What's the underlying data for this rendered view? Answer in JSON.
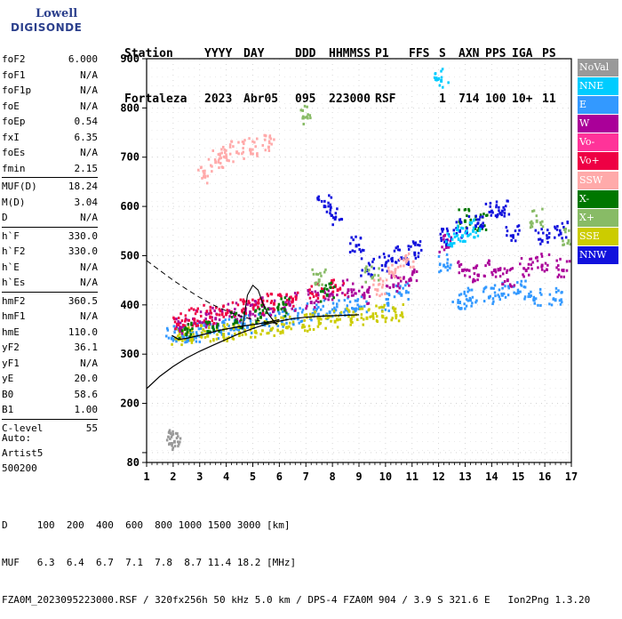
{
  "logo": {
    "line1": "Lowell",
    "line2": "DIGISONDE"
  },
  "header": {
    "labels": [
      "Station",
      "YYYY",
      "DAY",
      "DDD",
      "HHMMSS",
      "P1",
      "FFS",
      "S",
      "AXN",
      "PPS",
      "IGA",
      "PS"
    ],
    "values": [
      "Fortaleza",
      "2023",
      "Abr05",
      "095",
      "223000",
      "RSF",
      "1",
      "714",
      "100",
      "10+",
      "11"
    ]
  },
  "params": {
    "groups": [
      [
        [
          "foF2",
          "6.000"
        ],
        [
          "foF1",
          "N/A"
        ],
        [
          "foF1p",
          "N/A"
        ],
        [
          "foE",
          "N/A"
        ],
        [
          "foEp",
          "0.54"
        ],
        [
          "fxI",
          "6.35"
        ],
        [
          "foEs",
          "N/A"
        ],
        [
          "fmin",
          "2.15"
        ]
      ],
      [
        [
          "MUF(D)",
          "18.24"
        ],
        [
          "M(D)",
          "3.04"
        ],
        [
          "D",
          "N/A"
        ]
      ],
      [
        [
          "h`F",
          "330.0"
        ],
        [
          "h`F2",
          "330.0"
        ],
        [
          "h`E",
          "N/A"
        ],
        [
          "h`Es",
          "N/A"
        ]
      ],
      [
        [
          "hmF2",
          "360.5"
        ],
        [
          "hmF1",
          "N/A"
        ],
        [
          "hmE",
          "110.0"
        ],
        [
          "yF2",
          "36.1"
        ],
        [
          "yF1",
          "N/A"
        ],
        [
          "yE",
          "20.0"
        ],
        [
          "B0",
          "58.6"
        ],
        [
          "B1",
          "1.00"
        ]
      ],
      [
        [
          "C-level",
          "55"
        ]
      ]
    ]
  },
  "auto": [
    "Auto:",
    "Artist5",
    "500200"
  ],
  "footer": {
    "d_row": "D     100  200  400  600  800 1000 1500 3000 [km]",
    "muf_row": "MUF   6.3  6.4  6.7  7.1  7.8  8.7 11.4 18.2 [MHz]",
    "file_row": "FZA0M_2023095223000.RSF / 320fx256h 50 kHz 5.0 km / DPS-4 FZA0M 904 / 3.9 S 321.6 E   Ion2Png 1.3.20"
  },
  "legend": [
    {
      "label": "NoVal",
      "color": "#999999"
    },
    {
      "label": "NNE",
      "color": "#00ccff"
    },
    {
      "label": "E",
      "color": "#3399ff"
    },
    {
      "label": "W",
      "color": "#aa0099"
    },
    {
      "label": "Vo-",
      "color": "#ff3399"
    },
    {
      "label": "Vo+",
      "color": "#ee0044"
    },
    {
      "label": "SSW",
      "color": "#ffaaaa"
    },
    {
      "label": "X-",
      "color": "#007700"
    },
    {
      "label": "X+",
      "color": "#88bb66"
    },
    {
      "label": "SSE",
      "color": "#cccc00"
    },
    {
      "label": "NNW",
      "color": "#1111dd"
    }
  ],
  "chart_data": {
    "type": "scatter",
    "title": "",
    "xlabel": "",
    "ylabel": "",
    "xlim": [
      1,
      17
    ],
    "ylim": [
      80,
      900
    ],
    "x_ticks": [
      1,
      2,
      3,
      4,
      5,
      6,
      7,
      8,
      9,
      10,
      11,
      12,
      13,
      14,
      15,
      16,
      17
    ],
    "y_ticks": [
      80,
      100,
      200,
      300,
      400,
      500,
      600,
      700,
      800,
      900
    ],
    "y_tick_labels": [
      "80",
      "",
      "200",
      "300",
      "400",
      "500",
      "600",
      "700",
      "800",
      "900"
    ],
    "grid": true,
    "series": [
      {
        "color": "#3399ff",
        "x": [
          1.95,
          2.4,
          2.9,
          3.3,
          3.8,
          4.3,
          4.8,
          5.4,
          6.1,
          6.7,
          7.3,
          7.9,
          8.5,
          9.1,
          10.1,
          10.6,
          12.2,
          12.8,
          13.2,
          13.9,
          14.4,
          15.0,
          15.6,
          16.4
        ],
        "y": [
          332,
          334,
          338,
          341,
          345,
          350,
          355,
          360,
          366,
          372,
          378,
          385,
          390,
          395,
          400,
          420,
          480,
          405,
          410,
          415,
          420,
          425,
          410,
          410
        ]
      },
      {
        "color": "#cccc00",
        "x": [
          2.1,
          2.7,
          3.3,
          3.9,
          4.5,
          5.1,
          5.7,
          6.3,
          6.9,
          7.5,
          8.1,
          8.7,
          9.3,
          9.9,
          10.4
        ],
        "y": [
          332,
          335,
          337,
          340,
          343,
          346,
          350,
          354,
          358,
          362,
          366,
          370,
          373,
          376,
          378
        ]
      },
      {
        "color": "#aa0099",
        "x": [
          2.3,
          3.0,
          3.6,
          4.3,
          4.9,
          5.6,
          6.4,
          7.2,
          7.9,
          8.6,
          9.2,
          10.3,
          10.9,
          12.3,
          12.9,
          13.5,
          14.1,
          14.6,
          15.3,
          15.9,
          16.7
        ],
        "y": [
          352,
          365,
          372,
          380,
          385,
          392,
          400,
          405,
          420,
          430,
          415,
          440,
          450,
          520,
          470,
          460,
          470,
          450,
          470,
          480,
          470
        ]
      },
      {
        "color": "#ee0044",
        "x": [
          2.2,
          2.8,
          3.4,
          4.0,
          4.6,
          5.2,
          5.8,
          6.5,
          7.4,
          8.2
        ],
        "y": [
          360,
          370,
          375,
          382,
          388,
          395,
          402,
          410,
          420,
          430
        ]
      },
      {
        "color": "#007700",
        "x": [
          2.5,
          3.5,
          4.4,
          5.3,
          6.2,
          7.8,
          13.0,
          13.6
        ],
        "y": [
          340,
          355,
          365,
          375,
          390,
          420,
          570,
          560
        ]
      },
      {
        "color": "#1111dd",
        "x": [
          7.7,
          8.1,
          8.9,
          9.3,
          10.0,
          10.6,
          11.1,
          12.3,
          12.8,
          13.4,
          14.0,
          14.4,
          14.8,
          15.9,
          16.6
        ],
        "y": [
          600,
          575,
          520,
          470,
          480,
          495,
          505,
          530,
          550,
          560,
          590,
          590,
          540,
          530,
          545
        ]
      },
      {
        "color": "#ffaaaa",
        "x": [
          3.2,
          3.6,
          4.0,
          4.4,
          4.9,
          5.6,
          9.7,
          10.3,
          10.8
        ],
        "y": [
          660,
          690,
          700,
          710,
          715,
          720,
          430,
          460,
          490
        ]
      },
      {
        "color": "#00ccff",
        "x": [
          12.1,
          12.5,
          12.9,
          13.3
        ],
        "y": [
          855,
          520,
          540,
          550
        ]
      },
      {
        "color": "#88bb66",
        "x": [
          6.9,
          7.5,
          9.5,
          15.7,
          16.9
        ],
        "y": [
          780,
          450,
          455,
          570,
          530
        ]
      },
      {
        "color": "#999999",
        "x": [
          1.95,
          2.05
        ],
        "y": [
          118,
          122
        ]
      }
    ],
    "trace_x": [
      1.95,
      2.2,
      2.5,
      2.9,
      3.3,
      3.7,
      4.1,
      4.5,
      5.0,
      5.5,
      6.0
    ],
    "trace_y": [
      338,
      330,
      332,
      337,
      342,
      348,
      352,
      356,
      360,
      364,
      370
    ],
    "cusp_x": [
      4.6,
      4.8,
      5.0,
      5.2,
      5.4,
      5.6,
      5.9
    ],
    "cusp_y": [
      350,
      420,
      440,
      430,
      400,
      380,
      360
    ],
    "profile_x": [
      1.0,
      1.5,
      2.0,
      2.5,
      3.0,
      3.5,
      4.0,
      4.5,
      5.0,
      5.5,
      6.0,
      6.5,
      7.0,
      7.5,
      8.0,
      8.5,
      9.0
    ],
    "profile_y": [
      230,
      255,
      275,
      292,
      306,
      318,
      330,
      342,
      352,
      361,
      367,
      372,
      375,
      377,
      378,
      379,
      380
    ],
    "dashed_x": [
      1.0,
      1.5,
      2.0,
      2.5,
      3.0,
      3.5,
      4.0,
      4.5,
      5.0,
      5.5,
      6.0
    ],
    "dashed_y": [
      490,
      470,
      450,
      432,
      415,
      400,
      388,
      378,
      370,
      365,
      362
    ]
  }
}
